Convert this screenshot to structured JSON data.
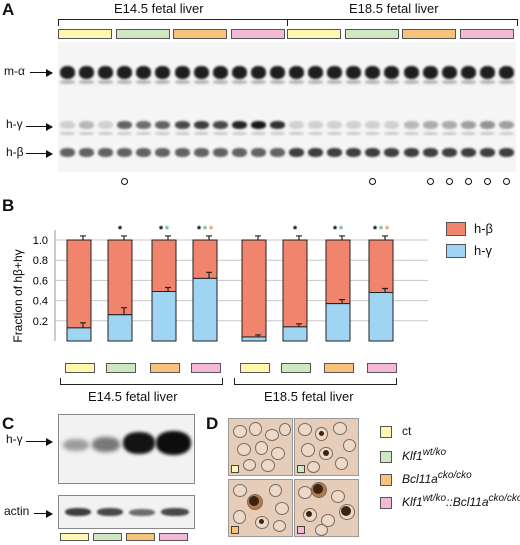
{
  "colors": {
    "ct": "#fff6b0",
    "klf1": "#cfe8c2",
    "bcl11a": "#f9c27a",
    "double": "#f4b9d6",
    "h_beta": "#f0846c",
    "h_gamma": "#9fd4f3",
    "star_black": "#111111",
    "star_green": "#6fbf73",
    "star_orange": "#f3a040"
  },
  "panel_a": {
    "letter": "A",
    "group1_title": "E14.5 fetal liver",
    "group2_title": "E18.5 fetal liver",
    "row_labels": [
      "m-α",
      "h-γ",
      "h-β"
    ],
    "lanes_per_group": 12,
    "gamma_levels": [
      0.15,
      0.25,
      0.12,
      0.6,
      0.55,
      0.6,
      0.7,
      0.75,
      0.7,
      0.85,
      0.9,
      0.8,
      0.05,
      0.05,
      0.05,
      0.08,
      0.05,
      0.1,
      0.25,
      0.3,
      0.3,
      0.35,
      0.4,
      0.35
    ],
    "circle_lanes": [
      3,
      16,
      19,
      20,
      21,
      22,
      23,
      24
    ]
  },
  "panel_b": {
    "letter": "B",
    "legend": [
      "h-β",
      "h-γ"
    ],
    "group1_title": "E14.5 fetal liver",
    "group2_title": "E18.5 fetal liver"
  },
  "chart_data": {
    "type": "bar",
    "stacked": true,
    "categories": [
      "E14.5 ct",
      "E14.5 Klf1wt/ko",
      "E14.5 Bcl11acko/cko",
      "E14.5 Klf1wt/ko::Bcl11acko/cko",
      "E18.5 ct",
      "E18.5 Klf1wt/ko",
      "E18.5 Bcl11acko/cko",
      "E18.5 Klf1wt/ko::Bcl11acko/cko"
    ],
    "series": [
      {
        "name": "h-γ",
        "values": [
          0.13,
          0.26,
          0.49,
          0.62,
          0.04,
          0.14,
          0.37,
          0.48
        ]
      },
      {
        "name": "h-β",
        "values": [
          0.87,
          0.74,
          0.51,
          0.38,
          0.96,
          0.86,
          0.63,
          0.52
        ]
      }
    ],
    "gamma_error": [
      0.05,
      0.07,
      0.04,
      0.06,
      0.02,
      0.03,
      0.04,
      0.04
    ],
    "stars": [
      [],
      [
        "black"
      ],
      [
        "black",
        "green"
      ],
      [
        "black",
        "green",
        "orange"
      ],
      [],
      [
        "black"
      ],
      [
        "black",
        "green"
      ],
      [
        "black",
        "green",
        "orange"
      ]
    ],
    "ylabel": "Fraction of hβ+hγ",
    "yticks": [
      "0.2",
      "0.4",
      "0.6",
      "0.8",
      "1.0"
    ],
    "ylim": [
      0,
      1.1
    ],
    "grid": true,
    "legend_position": "right"
  },
  "panel_c": {
    "letter": "C",
    "row_labels": [
      "h-γ",
      "actin"
    ]
  },
  "panel_d": {
    "letter": "D"
  },
  "legend": [
    {
      "base": "ct",
      "sup": "",
      "mid": "",
      "base2": "",
      "sup2": ""
    },
    {
      "base": "Klf1",
      "sup": "wt/ko",
      "mid": "",
      "base2": "",
      "sup2": ""
    },
    {
      "base": "Bcl11a",
      "sup": "cko/cko",
      "mid": "",
      "base2": "",
      "sup2": ""
    },
    {
      "base": "Klf1",
      "sup": "wt/ko",
      "mid": "::",
      "base2": "Bcl11a",
      "sup2": "cko/cko"
    }
  ]
}
